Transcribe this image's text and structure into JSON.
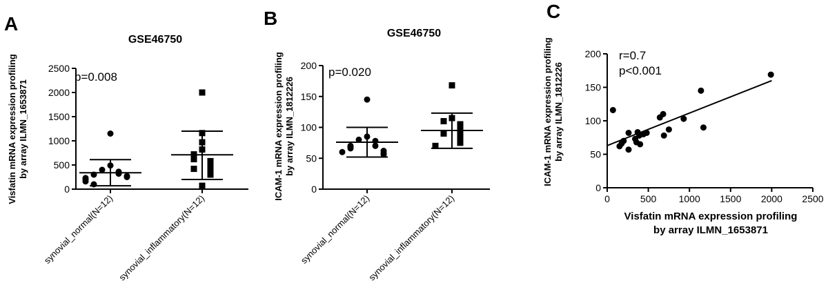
{
  "panels": [
    {
      "letter": "A",
      "title": "GSE46750",
      "stat": "p=0.008",
      "ylabel_line1": "Visfatin mRNA expression profiling",
      "ylabel_line2": "by array ILMN_1653871"
    },
    {
      "letter": "B",
      "title": "GSE46750",
      "stat": "p=0.020",
      "ylabel_line1": "ICAM-1 mRNA expression profiling",
      "ylabel_line2": "by array ILMN_1812226"
    },
    {
      "letter": "C",
      "stat_line1": "r=0.7",
      "stat_line2": "p<0.001",
      "ylabel_line1": "ICAM-1 mRNA expression profiling",
      "ylabel_line2": "by array ILMN_1812226",
      "xlabel_line1": "Visfatin mRNA expression profiling",
      "xlabel_line2": "by array ILMN_1653871"
    }
  ],
  "chart_data": [
    {
      "type": "scatter",
      "title": "GSE46750",
      "annotation": "p=0.008",
      "ylabel": "Visfatin mRNA expression profiling by array ILMN_1653871",
      "ylim": [
        0,
        2500
      ],
      "yticks": [
        0,
        500,
        1000,
        1500,
        2000,
        2500
      ],
      "categories": [
        "synovial_normal(N=12)",
        "synovial_inflammatory(N=12)"
      ],
      "series": [
        {
          "marker": "circle",
          "values": [
            1150,
            490,
            400,
            360,
            320,
            300,
            270,
            250,
            230,
            200,
            160,
            100
          ],
          "mean": 340,
          "sd_low": 70,
          "sd_high": 610
        },
        {
          "marker": "square",
          "values": [
            2000,
            1160,
            970,
            820,
            720,
            620,
            580,
            480,
            420,
            360,
            300,
            70
          ],
          "mean": 710,
          "sd_low": 200,
          "sd_high": 1200
        }
      ]
    },
    {
      "type": "scatter",
      "title": "GSE46750",
      "annotation": "p=0.020",
      "ylabel": "ICAM-1 mRNA expression profiling by array ILMN_1812226",
      "ylim": [
        0,
        200
      ],
      "yticks": [
        0,
        50,
        100,
        150,
        200
      ],
      "categories": [
        "synovial_normal(N=12)",
        "synovial_inflammatory(N=12)"
      ],
      "series": [
        {
          "marker": "circle",
          "values": [
            145,
            85,
            80,
            78,
            70,
            70,
            68,
            66,
            62,
            60,
            58,
            56
          ],
          "mean": 76,
          "sd_low": 52,
          "sd_high": 100
        },
        {
          "marker": "square",
          "values": [
            168,
            115,
            110,
            105,
            102,
            95,
            90,
            88,
            80,
            78,
            75,
            70
          ],
          "mean": 95,
          "sd_low": 66,
          "sd_high": 123
        }
      ]
    },
    {
      "type": "scatter",
      "annotation": [
        "r=0.7",
        "p<0.001"
      ],
      "xlabel": "Visfatin mRNA expression profiling by array ILMN_1653871",
      "ylabel": "ICAM-1 mRNA expression profiling by array ILMN_1812226",
      "xlim": [
        0,
        2500
      ],
      "ylim": [
        0,
        200
      ],
      "xticks": [
        0,
        500,
        1000,
        1500,
        2000,
        2500
      ],
      "yticks": [
        0,
        50,
        100,
        150,
        200
      ],
      "points": [
        {
          "x": 70,
          "y": 116
        },
        {
          "x": 150,
          "y": 62
        },
        {
          "x": 175,
          "y": 66
        },
        {
          "x": 200,
          "y": 70
        },
        {
          "x": 260,
          "y": 57
        },
        {
          "x": 260,
          "y": 82
        },
        {
          "x": 340,
          "y": 73
        },
        {
          "x": 355,
          "y": 68
        },
        {
          "x": 370,
          "y": 83
        },
        {
          "x": 390,
          "y": 78
        },
        {
          "x": 400,
          "y": 65
        },
        {
          "x": 440,
          "y": 80
        },
        {
          "x": 480,
          "y": 82
        },
        {
          "x": 640,
          "y": 105
        },
        {
          "x": 680,
          "y": 110
        },
        {
          "x": 690,
          "y": 78
        },
        {
          "x": 750,
          "y": 87
        },
        {
          "x": 930,
          "y": 103
        },
        {
          "x": 1140,
          "y": 145
        },
        {
          "x": 1170,
          "y": 90
        },
        {
          "x": 1990,
          "y": 169
        }
      ],
      "fit_line": {
        "x": [
          0,
          2000
        ],
        "y": [
          63,
          160
        ]
      }
    }
  ]
}
